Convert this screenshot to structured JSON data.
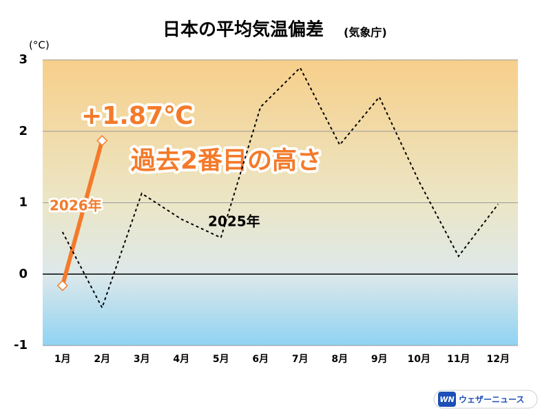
{
  "chart_data": {
    "type": "line",
    "title": "日本の平均気温偏差",
    "subtitle": "(気象庁)",
    "y_label": "(°C)",
    "categories": [
      "1月",
      "2月",
      "3月",
      "4月",
      "5月",
      "6月",
      "7月",
      "8月",
      "9月",
      "10月",
      "11月",
      "12月"
    ],
    "series": [
      {
        "name": "2026年",
        "color": "#f47a2a",
        "values": [
          -0.16,
          1.87,
          null,
          null,
          null,
          null,
          null,
          null,
          null,
          null,
          null,
          null
        ],
        "value_labels": [
          null,
          "+1.87℃",
          null,
          null,
          null,
          null,
          null,
          null,
          null,
          null,
          null,
          null
        ]
      },
      {
        "name": "2025年",
        "color": "#000000",
        "values": [
          0.59,
          -0.47,
          1.13,
          0.77,
          0.51,
          2.34,
          2.89,
          1.81,
          2.48,
          1.3,
          0.25,
          0.98
        ]
      }
    ],
    "annotations": [
      "過去2番目の高さ"
    ],
    "ylim": [
      -1,
      3
    ],
    "yticks": [
      -1,
      0,
      1,
      2,
      3
    ],
    "grid": true
  },
  "logo": {
    "mark": "WN",
    "text": "ウェザーニュース"
  }
}
